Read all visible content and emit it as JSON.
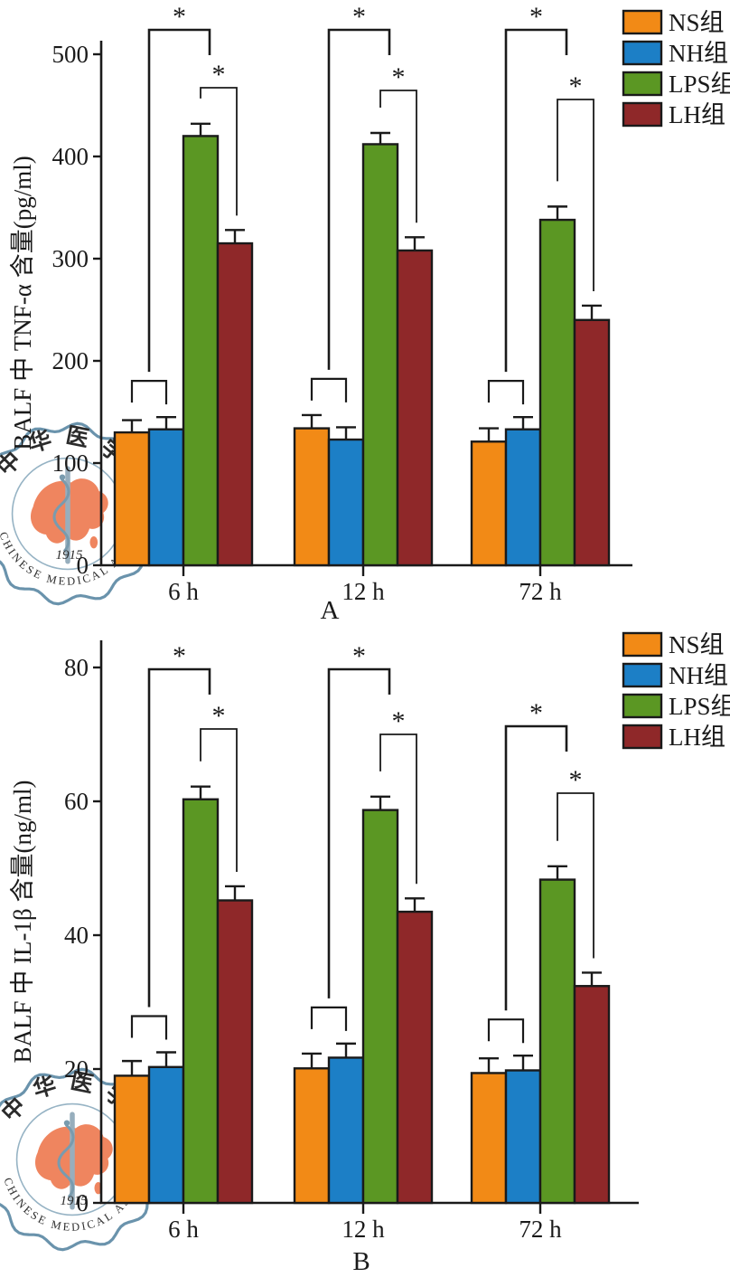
{
  "figure": {
    "panels": [
      "A",
      "B"
    ]
  },
  "legend": {
    "items": [
      {
        "label": "NS组",
        "color": "#F28A16"
      },
      {
        "label": "NH组",
        "color": "#1C7FC6"
      },
      {
        "label": "LPS组",
        "color": "#5B9723"
      },
      {
        "label": "LH组",
        "color": "#8F2829"
      }
    ]
  },
  "watermark": {
    "arc_text_top": "中华医学",
    "arc_text_bottom": "CHINESE MEDICAL ASSOCIA",
    "year": "1915",
    "border_color": "#5E8AA5",
    "map_color": "#EE7B52"
  },
  "chart_data": [
    {
      "type": "bar",
      "panel_label": "A",
      "ylabel": "BALF 中 TNF-α 含量(pg/ml)",
      "ylim": [
        0,
        500
      ],
      "yticks": [
        0,
        100,
        200,
        300,
        400,
        500
      ],
      "categories": [
        "6 h",
        "12 h",
        "72 h"
      ],
      "grid": false,
      "legend_position": "top-right",
      "series": [
        {
          "name": "NS组",
          "color": "#F28A16",
          "values": [
            130,
            134,
            121
          ],
          "errors": [
            12,
            13,
            13
          ]
        },
        {
          "name": "NH组",
          "color": "#1C7FC6",
          "values": [
            133,
            123,
            133
          ],
          "errors": [
            12,
            12,
            12
          ]
        },
        {
          "name": "LPS组",
          "color": "#5B9723",
          "values": [
            420,
            412,
            338
          ],
          "errors": [
            12,
            11,
            13
          ]
        },
        {
          "name": "LH组",
          "color": "#8F2829",
          "values": [
            315,
            308,
            240
          ],
          "errors": [
            13,
            13,
            14
          ]
        }
      ],
      "significance": [
        {
          "group": "6 h",
          "brackets": [
            {
              "between": [
                "NS组",
                "NH组"
              ],
              "label": ""
            },
            {
              "between": [
                "NS组/NH组",
                "LPS组"
              ],
              "label": "*"
            },
            {
              "between": [
                "LPS组",
                "LH组"
              ],
              "label": "*"
            }
          ]
        },
        {
          "group": "12 h",
          "brackets": [
            {
              "between": [
                "NS组",
                "NH组"
              ],
              "label": ""
            },
            {
              "between": [
                "NS组/NH组",
                "LPS组"
              ],
              "label": "*"
            },
            {
              "between": [
                "LPS组",
                "LH组"
              ],
              "label": "*"
            }
          ]
        },
        {
          "group": "72 h",
          "brackets": [
            {
              "between": [
                "NS组",
                "NH组"
              ],
              "label": ""
            },
            {
              "between": [
                "NS组/NH组",
                "LPS组"
              ],
              "label": "*"
            },
            {
              "between": [
                "LPS组",
                "LH组"
              ],
              "label": "*"
            }
          ]
        }
      ]
    },
    {
      "type": "bar",
      "panel_label": "B",
      "ylabel": "BALF 中 IL-1β 含量(ng/ml)",
      "ylim": [
        0,
        80
      ],
      "yticks": [
        0,
        20,
        40,
        60,
        80
      ],
      "categories": [
        "6 h",
        "12 h",
        "72 h"
      ],
      "grid": false,
      "legend_position": "top-right",
      "series": [
        {
          "name": "NS组",
          "color": "#F28A16",
          "values": [
            19.0,
            20.1,
            19.4
          ],
          "errors": [
            2.2,
            2.2,
            2.2
          ]
        },
        {
          "name": "NH组",
          "color": "#1C7FC6",
          "values": [
            20.3,
            21.7,
            19.8
          ],
          "errors": [
            2.2,
            2.1,
            2.2
          ]
        },
        {
          "name": "LPS组",
          "color": "#5B9723",
          "values": [
            60.3,
            58.7,
            48.3
          ],
          "errors": [
            1.9,
            2.0,
            2.0
          ]
        },
        {
          "name": "LH组",
          "color": "#8F2829",
          "values": [
            45.2,
            43.5,
            32.4
          ],
          "errors": [
            2.1,
            2.0,
            2.0
          ]
        }
      ],
      "significance": [
        {
          "group": "6 h",
          "brackets": [
            {
              "between": [
                "NS组",
                "NH组"
              ],
              "label": ""
            },
            {
              "between": [
                "NS组/NH组",
                "LPS组"
              ],
              "label": "*"
            },
            {
              "between": [
                "LPS组",
                "LH组"
              ],
              "label": "*"
            }
          ]
        },
        {
          "group": "12 h",
          "brackets": [
            {
              "between": [
                "NS组",
                "NH组"
              ],
              "label": ""
            },
            {
              "between": [
                "NS组/NH组",
                "LPS组"
              ],
              "label": "*"
            },
            {
              "between": [
                "LPS组",
                "LH组"
              ],
              "label": "*"
            }
          ]
        },
        {
          "group": "72 h",
          "brackets": [
            {
              "between": [
                "NS组",
                "NH组"
              ],
              "label": ""
            },
            {
              "between": [
                "NS组/NH组",
                "LPS组"
              ],
              "label": "*"
            },
            {
              "between": [
                "LPS组",
                "LH组"
              ],
              "label": "*"
            }
          ]
        }
      ]
    }
  ]
}
